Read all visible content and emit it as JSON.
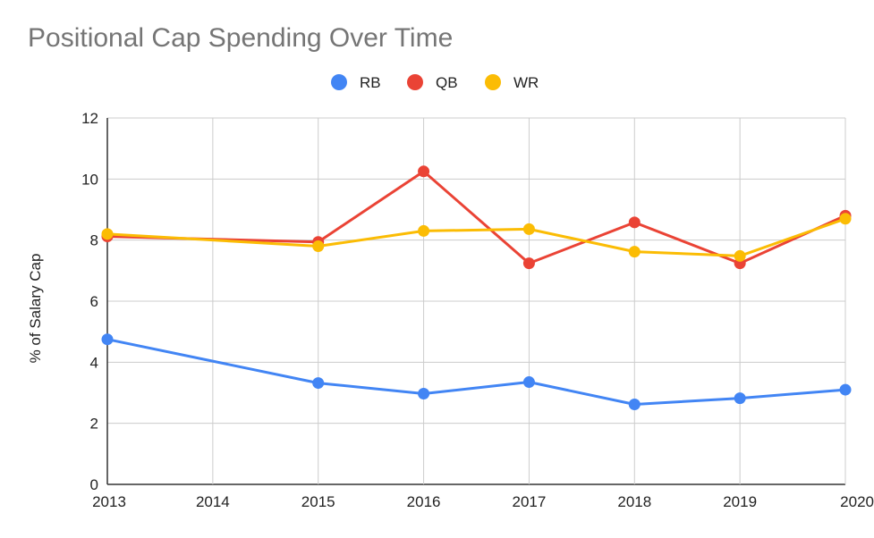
{
  "chart_data": {
    "type": "line",
    "title": "Positional Cap Spending Over Time",
    "xlabel": "",
    "ylabel": "% of Salary Cap",
    "x": [
      2013,
      2014,
      2015,
      2016,
      2017,
      2018,
      2019,
      2020
    ],
    "ylim": [
      0,
      12
    ],
    "yticks": [
      0,
      2,
      4,
      6,
      8,
      10,
      12
    ],
    "grid": true,
    "legend": "top-center",
    "series": [
      {
        "name": "RB",
        "color": "#4285F4",
        "points": [
          [
            2013,
            4.75
          ],
          [
            2015,
            3.32
          ],
          [
            2016,
            2.97
          ],
          [
            2017,
            3.35
          ],
          [
            2018,
            2.62
          ],
          [
            2019,
            2.82
          ],
          [
            2020,
            3.1
          ]
        ]
      },
      {
        "name": "QB",
        "color": "#EA4335",
        "points": [
          [
            2013,
            8.12
          ],
          [
            2015,
            7.94
          ],
          [
            2016,
            10.25
          ],
          [
            2017,
            7.24
          ],
          [
            2018,
            8.58
          ],
          [
            2019,
            7.24
          ],
          [
            2020,
            8.8
          ]
        ]
      },
      {
        "name": "WR",
        "color": "#FBBC04",
        "points": [
          [
            2013,
            8.2
          ],
          [
            2015,
            7.8
          ],
          [
            2016,
            8.3
          ],
          [
            2017,
            8.36
          ],
          [
            2018,
            7.62
          ],
          [
            2019,
            7.48
          ],
          [
            2020,
            8.7
          ]
        ]
      }
    ]
  }
}
